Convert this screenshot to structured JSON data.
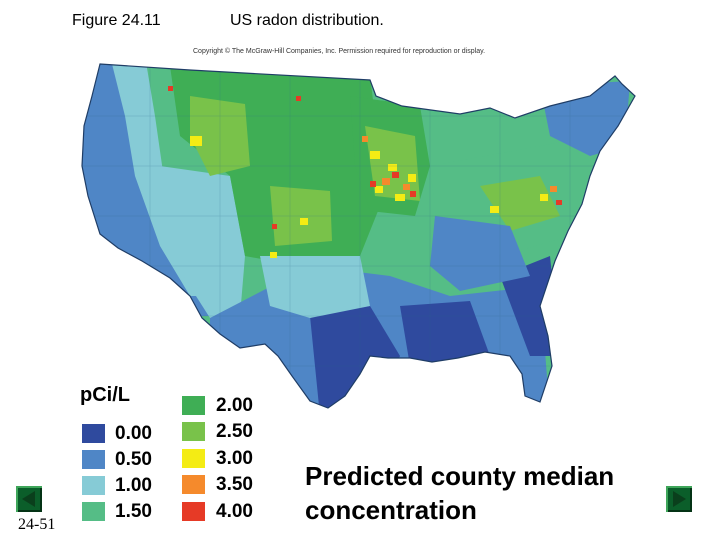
{
  "figure": {
    "label": "Figure 24.11",
    "caption": "US radon distribution."
  },
  "copyright": "Copyright © The McGraw-Hill Companies, Inc. Permission required for reproduction or display.",
  "legend": {
    "unit": "pCi/L",
    "items": [
      {
        "label": "0.00",
        "color": "#2f4a9e"
      },
      {
        "label": "0.50",
        "color": "#4f86c6"
      },
      {
        "label": "1.00",
        "color": "#86cbd6"
      },
      {
        "label": "1.50",
        "color": "#55bd86"
      },
      {
        "label": "2.00",
        "color": "#3fae55"
      },
      {
        "label": "2.50",
        "color": "#79c24a"
      },
      {
        "label": "3.00",
        "color": "#f4ec14"
      },
      {
        "label": "3.50",
        "color": "#f58a2c"
      },
      {
        "label": "4.00",
        "color": "#e63a26"
      }
    ]
  },
  "map_caption": {
    "line1": "Predicted county median",
    "line2": "concentration"
  },
  "slide_number": "24-51",
  "nav": {
    "prev_icon": "triangle-left-icon",
    "next_icon": "triangle-right-icon"
  }
}
